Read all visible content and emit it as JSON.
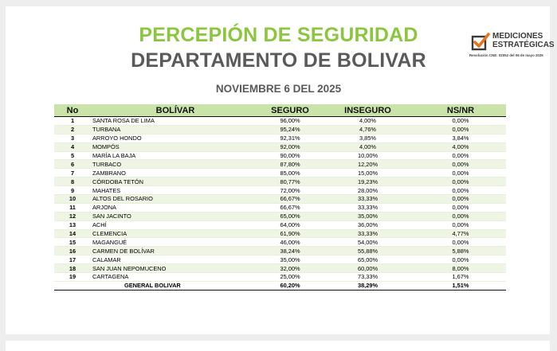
{
  "header": {
    "title_line1": "PERCEPIÓN DE SEGURIDAD",
    "title_line2": "DEPARTAMENTO DE BOLIVAR",
    "subtitle": "NOVIEMBRE 6 DEL 2025"
  },
  "logo": {
    "line1": "MEDICIONES",
    "line2": "ESTRATÉGICAS",
    "caption": "Resolución CNE: 02052 del 06 de mayo 2025",
    "mark_color": "#e8731a"
  },
  "table": {
    "headers": {
      "no": "No",
      "name": "BOLÍVAR",
      "seguro": "SEGURO",
      "inseguro": "INSEGURO",
      "nsnr": "NS/NR"
    },
    "rows": [
      {
        "no": "1",
        "name": "SANTA ROSA DE LIMA",
        "seguro": "96,00%",
        "inseguro": "4,00%",
        "nsnr": "0,00%"
      },
      {
        "no": "2",
        "name": "TURBANA",
        "seguro": "95,24%",
        "inseguro": "4,76%",
        "nsnr": "0,00%"
      },
      {
        "no": "3",
        "name": "ARROYO HONDO",
        "seguro": "92,31%",
        "inseguro": "3,85%",
        "nsnr": "3,84%"
      },
      {
        "no": "4",
        "name": "MOMPÓS",
        "seguro": "92,00%",
        "inseguro": "4,00%",
        "nsnr": "4,00%"
      },
      {
        "no": "5",
        "name": "MARÍA LA BAJA",
        "seguro": "90,00%",
        "inseguro": "10,00%",
        "nsnr": "0,00%"
      },
      {
        "no": "6",
        "name": "TURBACO",
        "seguro": "87,80%",
        "inseguro": "12,20%",
        "nsnr": "0,00%"
      },
      {
        "no": "7",
        "name": "ZAMBRANO",
        "seguro": "85,00%",
        "inseguro": "15,00%",
        "nsnr": "0,00%"
      },
      {
        "no": "8",
        "name": "CÓRDOBA TETÓN",
        "seguro": "80,77%",
        "inseguro": "19,23%",
        "nsnr": "0,00%"
      },
      {
        "no": "9",
        "name": "MAHATES",
        "seguro": "72,00%",
        "inseguro": "28,00%",
        "nsnr": "0,00%"
      },
      {
        "no": "10",
        "name": "ALTOS DEL ROSARIO",
        "seguro": "66,67%",
        "inseguro": "33,33%",
        "nsnr": "0,00%"
      },
      {
        "no": "11",
        "name": "ARJONA",
        "seguro": "66,67%",
        "inseguro": "33,33%",
        "nsnr": "0,00%"
      },
      {
        "no": "12",
        "name": "SAN JACINTO",
        "seguro": "65,00%",
        "inseguro": "35,00%",
        "nsnr": "0,00%"
      },
      {
        "no": "13",
        "name": "ACHÍ",
        "seguro": "64,00%",
        "inseguro": "36,00%",
        "nsnr": "0,00%"
      },
      {
        "no": "14",
        "name": "CLEMENCIA",
        "seguro": "61,90%",
        "inseguro": "33,33%",
        "nsnr": "4,77%"
      },
      {
        "no": "15",
        "name": "MAGANGUÉ",
        "seguro": "46,00%",
        "inseguro": "54,00%",
        "nsnr": "0,00%"
      },
      {
        "no": "16",
        "name": "CARMEN DE BOLÍVAR",
        "seguro": "38,24%",
        "inseguro": "55,88%",
        "nsnr": "5,88%"
      },
      {
        "no": "17",
        "name": "CALAMAR",
        "seguro": "35,00%",
        "inseguro": "65,00%",
        "nsnr": "0,00%"
      },
      {
        "no": "18",
        "name": "SAN JUAN NEPOMUCENO",
        "seguro": "32,00%",
        "inseguro": "60,00%",
        "nsnr": "8,00%"
      },
      {
        "no": "19",
        "name": "CARTAGENA",
        "seguro": "25,00%",
        "inseguro": "73,33%",
        "nsnr": "1,67%"
      }
    ],
    "total": {
      "name": "GENERAL BOLIVAR",
      "seguro": "60,20%",
      "inseguro": "38,29%",
      "nsnr": "1,51%"
    }
  },
  "colors": {
    "title_green": "#8cc63f",
    "title_gray": "#5a5a5a",
    "header_fill": "#c9e3a8",
    "row_alt": "#eef5e4"
  }
}
